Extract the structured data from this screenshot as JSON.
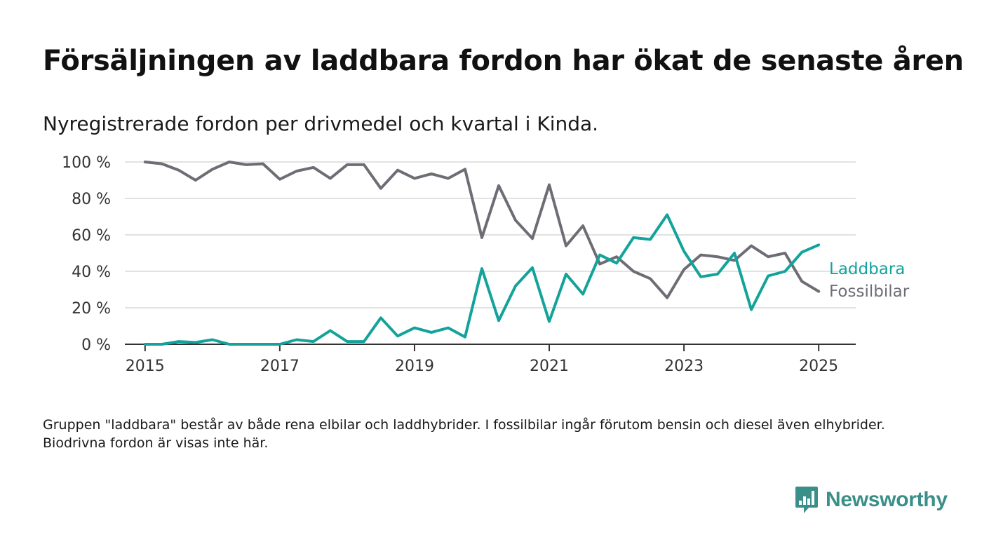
{
  "title": "Försäljningen av laddbara fordon har ökat de senaste åren",
  "subtitle": "Nyregistrerade fordon per drivmedel och kvartal i Kinda.",
  "footnote": "Gruppen \"laddbara\" består av både rena elbilar och laddhybrider. I fossilbilar ingår förutom bensin och diesel även elhybrider. Biodrivna fordon är visas inte här.",
  "brand": {
    "name": "Newsworthy",
    "color": "#3a9088"
  },
  "chart_data": {
    "type": "line",
    "ylim": [
      0,
      100
    ],
    "xlim": [
      2014.7,
      2025.55
    ],
    "y_ticks": [
      0,
      20,
      40,
      60,
      80,
      100
    ],
    "y_tick_labels": [
      "0 %",
      "20 %",
      "40 %",
      "60 %",
      "80 %",
      "100 %"
    ],
    "x_ticks": [
      2015,
      2017,
      2019,
      2021,
      2023,
      2025
    ],
    "x_tick_labels": [
      "2015",
      "2017",
      "2019",
      "2021",
      "2023",
      "2025"
    ],
    "grid": true,
    "legend": "right, at line ends",
    "x": [
      2015.0,
      2015.25,
      2015.5,
      2015.75,
      2016.0,
      2016.25,
      2016.5,
      2016.75,
      2017.0,
      2017.25,
      2017.5,
      2017.75,
      2018.0,
      2018.25,
      2018.5,
      2018.75,
      2019.0,
      2019.25,
      2019.5,
      2019.75,
      2020.0,
      2020.25,
      2020.5,
      2020.75,
      2021.0,
      2021.25,
      2021.5,
      2021.75,
      2022.0,
      2022.25,
      2022.5,
      2022.75,
      2023.0,
      2023.25,
      2023.5,
      2023.75,
      2024.0,
      2024.25,
      2024.5,
      2024.75,
      2025.0
    ],
    "series": [
      {
        "name": "Laddbara",
        "color": "#13a39a",
        "values": [
          0,
          0,
          1.5,
          1,
          2.5,
          0,
          0,
          0,
          0,
          2.5,
          1.5,
          7.5,
          1.5,
          1.5,
          14.5,
          4.5,
          9,
          6.5,
          9,
          4,
          41.5,
          13,
          32,
          42,
          12.5,
          38.5,
          27.5,
          49,
          44.5,
          58.5,
          57.5,
          71,
          51,
          37,
          38.5,
          50,
          19,
          37.5,
          40,
          50.5,
          54.5
        ]
      },
      {
        "name": "Fossilbilar",
        "color": "#6e6d75",
        "values": [
          100,
          99,
          95.5,
          90,
          96,
          100,
          98.5,
          99,
          90.5,
          95,
          97,
          91,
          98.5,
          98.5,
          85.5,
          95.5,
          91,
          93.5,
          91,
          96,
          58.5,
          87,
          68,
          58,
          87.5,
          54,
          65,
          44,
          48,
          40,
          36,
          25.5,
          41,
          49,
          48,
          46,
          54,
          48,
          50,
          34.5,
          29
        ]
      }
    ]
  }
}
